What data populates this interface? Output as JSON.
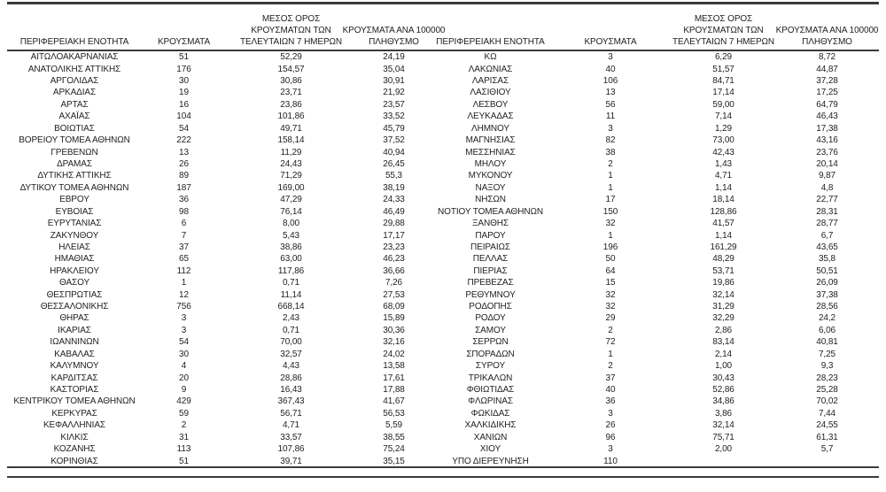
{
  "colors": {
    "text": "#1f1f1f",
    "line": "#3b3b3b",
    "background": "#ffffff"
  },
  "table": {
    "columns": [
      {
        "name": "region",
        "header_lines": [
          "ΠΕΡΙΦΕΡΕΙΑΚΗ ΕΝΟΤΗΤΑ"
        ]
      },
      {
        "name": "cases",
        "header_lines": [
          "ΚΡΟΥΣΜΑΤΑ"
        ]
      },
      {
        "name": "avg7",
        "header_lines": [
          "ΜΕΣΟΣ ΟΡΟΣ",
          "ΚΡΟΥΣΜΑΤΩΝ ΤΩΝ",
          "ΤΕΛΕΥΤΑΙΩΝ 7 ΗΜΕΡΩΝ"
        ]
      },
      {
        "name": "per100k",
        "header_lines": [
          "ΚΡΟΥΣΜΑΤΑ ΑΝΑ 100000",
          "ΠΛΗΘΥΣΜΟ"
        ]
      }
    ],
    "left_rows": [
      [
        "ΑΙΤΩΛΟΑΚΑΡΝΑΝΙΑΣ",
        "51",
        "52,29",
        "24,19"
      ],
      [
        "ΑΝΑΤΟΛΙΚΗΣ ΑΤΤΙΚΗΣ",
        "176",
        "154,57",
        "35,04"
      ],
      [
        "ΑΡΓΟΛΙΔΑΣ",
        "30",
        "30,86",
        "30,91"
      ],
      [
        "ΑΡΚΑΔΙΑΣ",
        "19",
        "23,71",
        "21,92"
      ],
      [
        "ΑΡΤΑΣ",
        "16",
        "23,86",
        "23,57"
      ],
      [
        "ΑΧΑΪΑΣ",
        "104",
        "101,86",
        "33,52"
      ],
      [
        "ΒΟΙΩΤΙΑΣ",
        "54",
        "49,71",
        "45,79"
      ],
      [
        "ΒΟΡΕΙΟΥ ΤΟΜΕΑ ΑΘΗΝΩΝ",
        "222",
        "158,14",
        "37,52"
      ],
      [
        "ΓΡΕΒΕΝΩΝ",
        "13",
        "11,29",
        "40,94"
      ],
      [
        "ΔΡΑΜΑΣ",
        "26",
        "24,43",
        "26,45"
      ],
      [
        "ΔΥΤΙΚΗΣ ΑΤΤΙΚΗΣ",
        "89",
        "71,29",
        "55,3"
      ],
      [
        "ΔΥΤΙΚΟΥ ΤΟΜΕΑ ΑΘΗΝΩΝ",
        "187",
        "169,00",
        "38,19"
      ],
      [
        "ΕΒΡΟΥ",
        "36",
        "47,29",
        "24,33"
      ],
      [
        "ΕΥΒΟΙΑΣ",
        "98",
        "76,14",
        "46,49"
      ],
      [
        "ΕΥΡΥΤΑΝΙΑΣ",
        "6",
        "8,00",
        "29,88"
      ],
      [
        "ΖΑΚΥΝΘΟΥ",
        "7",
        "5,43",
        "17,17"
      ],
      [
        "ΗΛΕΙΑΣ",
        "37",
        "38,86",
        "23,23"
      ],
      [
        "ΗΜΑΘΙΑΣ",
        "65",
        "63,00",
        "46,23"
      ],
      [
        "ΗΡΑΚΛΕΙΟΥ",
        "112",
        "117,86",
        "36,66"
      ],
      [
        "ΘΑΣΟΥ",
        "1",
        "0,71",
        "7,26"
      ],
      [
        "ΘΕΣΠΡΩΤΙΑΣ",
        "12",
        "11,14",
        "27,53"
      ],
      [
        "ΘΕΣΣΑΛΟΝΙΚΗΣ",
        "756",
        "668,14",
        "68,09"
      ],
      [
        "ΘΗΡΑΣ",
        "3",
        "2,43",
        "15,89"
      ],
      [
        "ΙΚΑΡΙΑΣ",
        "3",
        "0,71",
        "30,36"
      ],
      [
        "ΙΩΑΝΝΙΝΩΝ",
        "54",
        "70,00",
        "32,16"
      ],
      [
        "ΚΑΒΑΛΑΣ",
        "30",
        "32,57",
        "24,02"
      ],
      [
        "ΚΑΛΥΜΝΟΥ",
        "4",
        "4,43",
        "13,58"
      ],
      [
        "ΚΑΡΔΙΤΣΑΣ",
        "20",
        "28,86",
        "17,61"
      ],
      [
        "ΚΑΣΤΟΡΙΑΣ",
        "9",
        "16,43",
        "17,88"
      ],
      [
        "ΚΕΝΤΡΙΚΟΥ ΤΟΜΕΑ ΑΘΗΝΩΝ",
        "429",
        "367,43",
        "41,67"
      ],
      [
        "ΚΕΡΚΥΡΑΣ",
        "59",
        "56,71",
        "56,53"
      ],
      [
        "ΚΕΦΑΛΛΗΝΙΑΣ",
        "2",
        "4,71",
        "5,59"
      ],
      [
        "ΚΙΛΚΙΣ",
        "31",
        "33,57",
        "38,55"
      ],
      [
        "ΚΟΖΑΝΗΣ",
        "113",
        "107,86",
        "75,24"
      ],
      [
        "ΚΟΡΙΝΘΙΑΣ",
        "51",
        "39,71",
        "35,15"
      ]
    ],
    "right_rows": [
      [
        "ΚΩ",
        "3",
        "6,29",
        "8,72"
      ],
      [
        "ΛΑΚΩΝΙΑΣ",
        "40",
        "51,57",
        "44,87"
      ],
      [
        "ΛΑΡΙΣΑΣ",
        "106",
        "84,71",
        "37,28"
      ],
      [
        "ΛΑΣΙΘΙΟΥ",
        "13",
        "17,14",
        "17,25"
      ],
      [
        "ΛΕΣΒΟΥ",
        "56",
        "59,00",
        "64,79"
      ],
      [
        "ΛΕΥΚΑΔΑΣ",
        "11",
        "7,14",
        "46,43"
      ],
      [
        "ΛΗΜΝΟΥ",
        "3",
        "1,29",
        "17,38"
      ],
      [
        "ΜΑΓΝΗΣΙΑΣ",
        "82",
        "73,00",
        "43,16"
      ],
      [
        "ΜΕΣΣΗΝΙΑΣ",
        "38",
        "42,43",
        "23,76"
      ],
      [
        "ΜΗΛΟΥ",
        "2",
        "1,43",
        "20,14"
      ],
      [
        "ΜΥΚΟΝΟΥ",
        "1",
        "4,71",
        "9,87"
      ],
      [
        "ΝΑΞΟΥ",
        "1",
        "1,14",
        "4,8"
      ],
      [
        "ΝΗΣΩΝ",
        "17",
        "18,14",
        "22,77"
      ],
      [
        "ΝΟΤΙΟΥ ΤΟΜΕΑ ΑΘΗΝΩΝ",
        "150",
        "128,86",
        "28,31"
      ],
      [
        "ΞΑΝΘΗΣ",
        "32",
        "41,57",
        "28,77"
      ],
      [
        "ΠΑΡΟΥ",
        "1",
        "1,14",
        "6,7"
      ],
      [
        "ΠΕΙΡΑΙΩΣ",
        "196",
        "161,29",
        "43,65"
      ],
      [
        "ΠΕΛΛΑΣ",
        "50",
        "48,29",
        "35,8"
      ],
      [
        "ΠΙΕΡΙΑΣ",
        "64",
        "53,71",
        "50,51"
      ],
      [
        "ΠΡΕΒΕΖΑΣ",
        "15",
        "19,86",
        "26,09"
      ],
      [
        "ΡΕΘΥΜΝΟΥ",
        "32",
        "32,14",
        "37,38"
      ],
      [
        "ΡΟΔΟΠΗΣ",
        "32",
        "31,29",
        "28,56"
      ],
      [
        "ΡΟΔΟΥ",
        "29",
        "32,29",
        "24,2"
      ],
      [
        "ΣΑΜΟΥ",
        "2",
        "2,86",
        "6,06"
      ],
      [
        "ΣΕΡΡΩΝ",
        "72",
        "83,14",
        "40,81"
      ],
      [
        "ΣΠΟΡΑΔΩΝ",
        "1",
        "2,14",
        "7,25"
      ],
      [
        "ΣΥΡΟΥ",
        "2",
        "1,00",
        "9,3"
      ],
      [
        "ΤΡΙΚΑΛΩΝ",
        "37",
        "30,43",
        "28,23"
      ],
      [
        "ΦΘΙΩΤΙΔΑΣ",
        "40",
        "52,86",
        "25,28"
      ],
      [
        "ΦΛΩΡΙΝΑΣ",
        "36",
        "34,86",
        "70,02"
      ],
      [
        "ΦΩΚΙΔΑΣ",
        "3",
        "3,86",
        "7,44"
      ],
      [
        "ΧΑΛΚΙΔΙΚΗΣ",
        "26",
        "32,14",
        "24,55"
      ],
      [
        "ΧΑΝΙΩΝ",
        "96",
        "75,71",
        "61,31"
      ],
      [
        "ΧΙΟΥ",
        "3",
        "2,00",
        "5,7"
      ],
      [
        "ΥΠΟ ΔΙΕΡΕΥΝΗΣΗ",
        "110",
        "",
        ""
      ]
    ]
  }
}
